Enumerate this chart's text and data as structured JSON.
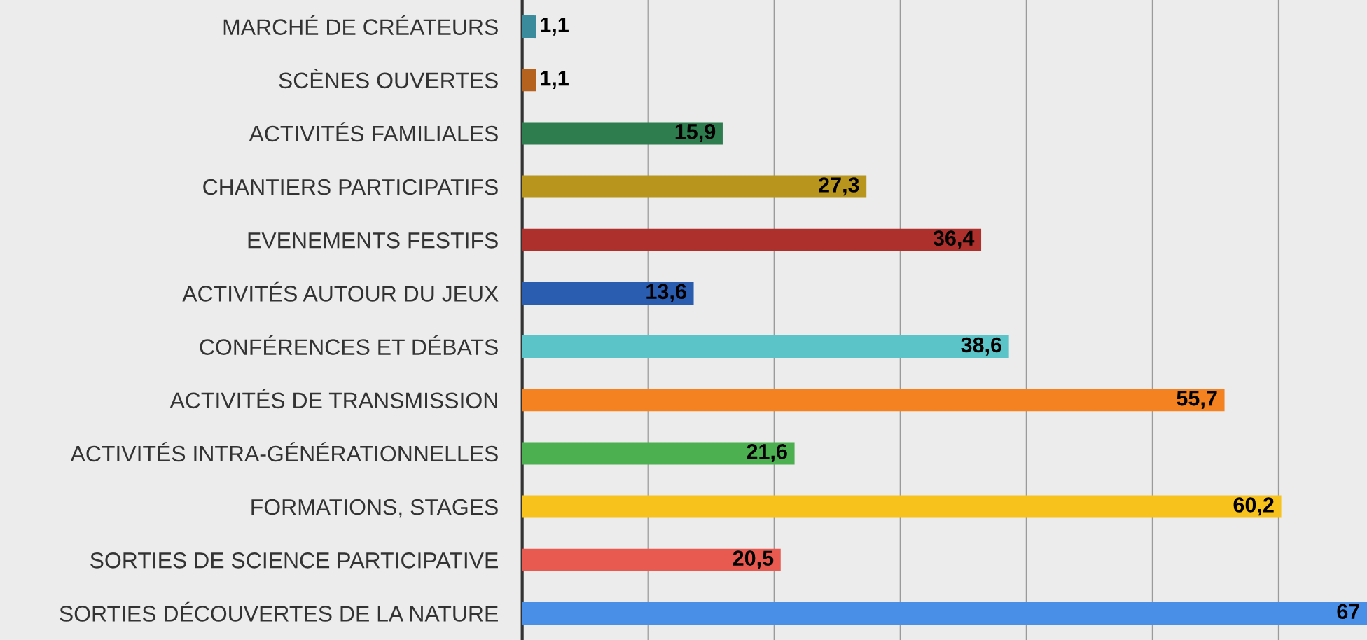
{
  "chart_data": {
    "type": "bar",
    "orientation": "horizontal",
    "categories": [
      "MARCHÉ DE CRÉATEURS",
      "SCÈNES OUVERTES",
      "ACTIVITÉS FAMILIALES",
      "CHANTIERS PARTICIPATIFS",
      "EVENEMENTS FESTIFS",
      "ACTIVITÉS AUTOUR DU JEUX",
      "CONFÉRENCES ET DÉBATS",
      "ACTIVITÉS DE TRANSMISSION",
      "ACTIVITÉS INTRA-GÉNÉRATIONNELLES",
      "FORMATIONS, STAGES",
      "SORTIES DE SCIENCE PARTICIPATIVE",
      "SORTIES DÉCOUVERTES DE LA NATURE"
    ],
    "values": [
      1.1,
      1.1,
      15.9,
      27.3,
      36.4,
      13.6,
      38.6,
      55.7,
      21.6,
      60.2,
      20.5,
      67
    ],
    "colors": [
      "#3a8c9c",
      "#b5621f",
      "#2e7d4f",
      "#b8961e",
      "#ae302d",
      "#2a5db0",
      "#5bc4c8",
      "#f58220",
      "#4caf50",
      "#f7c21c",
      "#e85a50",
      "#4a8fe7"
    ],
    "xlim": [
      0,
      67
    ],
    "xticks": [
      {
        "value": 0,
        "label": null
      },
      {
        "value": 10,
        "label": null
      },
      {
        "value": 20,
        "label": null
      },
      {
        "value": 30,
        "label": null
      },
      {
        "value": 40,
        "label": null
      },
      {
        "value": 50,
        "label": null
      },
      {
        "value": 60,
        "label": null
      }
    ],
    "value_labels": [
      "1,1",
      "1,1",
      "15,9",
      "27,3",
      "36,4",
      "13,6",
      "38,6",
      "55,7",
      "21,6",
      "60,2",
      "20,5",
      "67"
    ],
    "tick_labels": "y",
    "grid": "x"
  }
}
